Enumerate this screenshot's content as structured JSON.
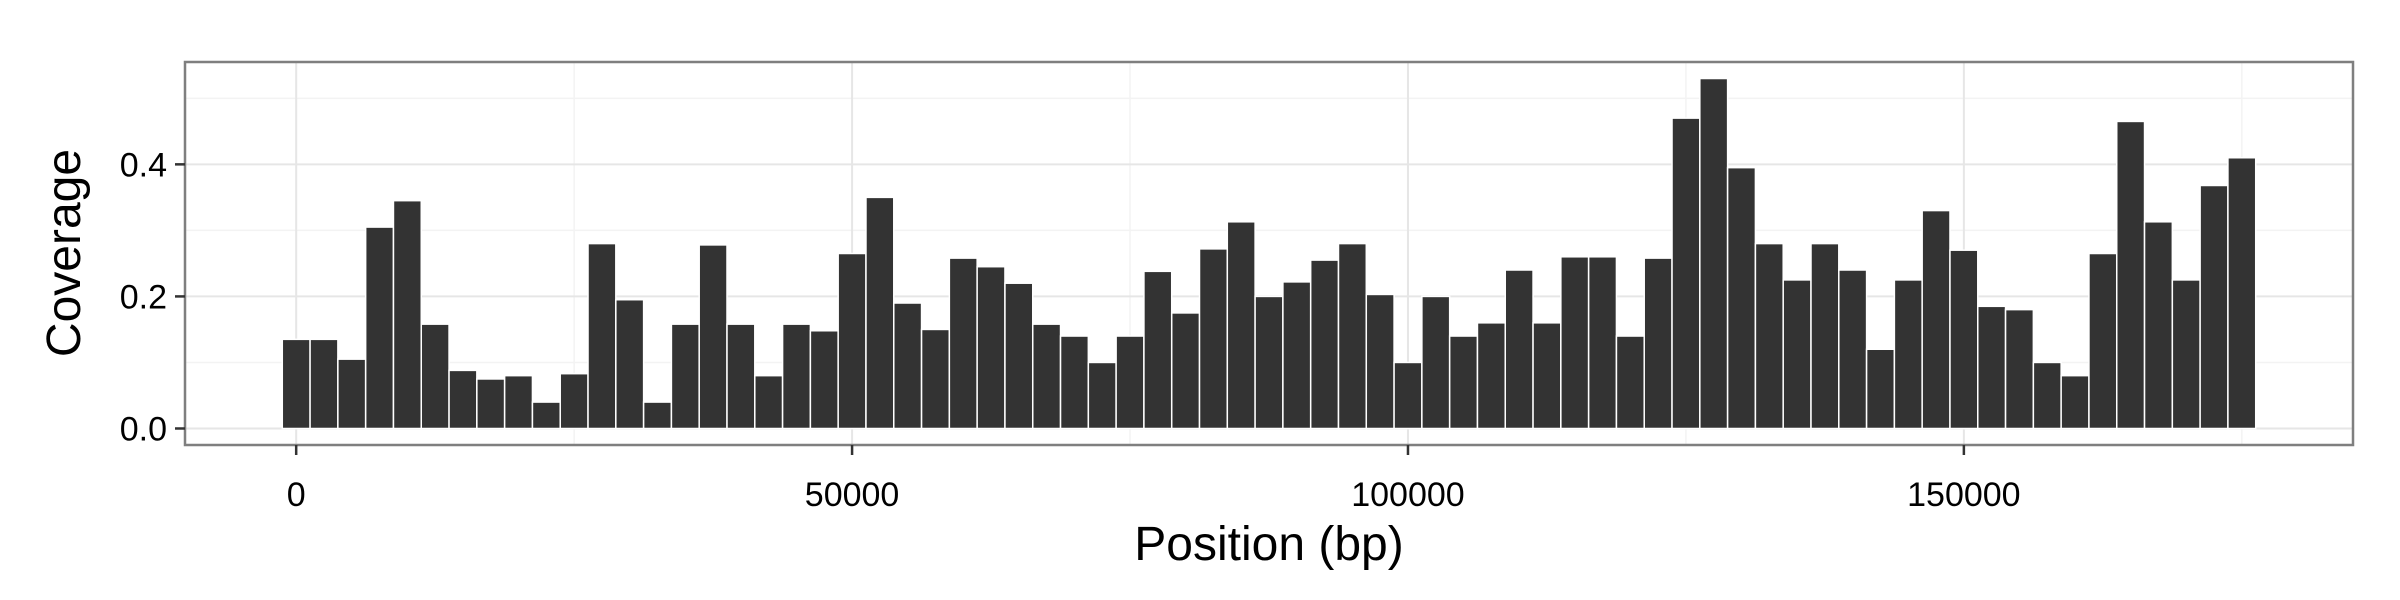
{
  "chart_data": {
    "type": "bar",
    "title": "",
    "xlabel": "Position (bp)",
    "ylabel": "Coverage",
    "xlim": [
      -10000,
      185000
    ],
    "ylim": [
      -0.025,
      0.555
    ],
    "x_ticks": [
      0,
      50000,
      100000,
      150000
    ],
    "x_tick_labels": [
      "0",
      "50000",
      "100000",
      "150000"
    ],
    "y_ticks": [
      0.0,
      0.2,
      0.4
    ],
    "y_tick_labels": [
      "0.0",
      "0.2",
      "0.4"
    ],
    "grid": true,
    "bar_color": "#333333",
    "bin_width": 2500,
    "x": [
      0,
      2500,
      5000,
      7500,
      10000,
      12500,
      15000,
      17500,
      20000,
      22500,
      25000,
      27500,
      30000,
      32500,
      35000,
      37500,
      40000,
      42500,
      45000,
      47500,
      50000,
      52500,
      55000,
      57500,
      60000,
      62500,
      65000,
      67500,
      70000,
      72500,
      75000,
      77500,
      80000,
      82500,
      85000,
      87500,
      90000,
      92500,
      95000,
      97500,
      100000,
      102500,
      105000,
      107500,
      110000,
      112500,
      115000,
      117500,
      120000,
      122500,
      125000,
      127500,
      130000,
      132500,
      135000,
      137500,
      140000,
      142500,
      145000,
      147500,
      150000,
      152500,
      155000,
      157500,
      160000,
      162500,
      165000,
      167500,
      170000,
      172500,
      175000
    ],
    "values": [
      0.135,
      0.135,
      0.105,
      0.305,
      0.345,
      0.158,
      0.088,
      0.075,
      0.08,
      0.04,
      0.083,
      0.28,
      0.195,
      0.04,
      0.158,
      0.278,
      0.158,
      0.08,
      0.158,
      0.148,
      0.265,
      0.35,
      0.19,
      0.15,
      0.258,
      0.245,
      0.22,
      0.158,
      0.14,
      0.1,
      0.14,
      0.238,
      0.175,
      0.272,
      0.313,
      0.2,
      0.222,
      0.255,
      0.28,
      0.203,
      0.1,
      0.2,
      0.14,
      0.16,
      0.24,
      0.16,
      0.26,
      0.26,
      0.14,
      0.258,
      0.47,
      0.53,
      0.395,
      0.28,
      0.225,
      0.28,
      0.24,
      0.12,
      0.225,
      0.33,
      0.27,
      0.185,
      0.18,
      0.1,
      0.08,
      0.265,
      0.465,
      0.313,
      0.225,
      0.368,
      0.41
    ]
  }
}
